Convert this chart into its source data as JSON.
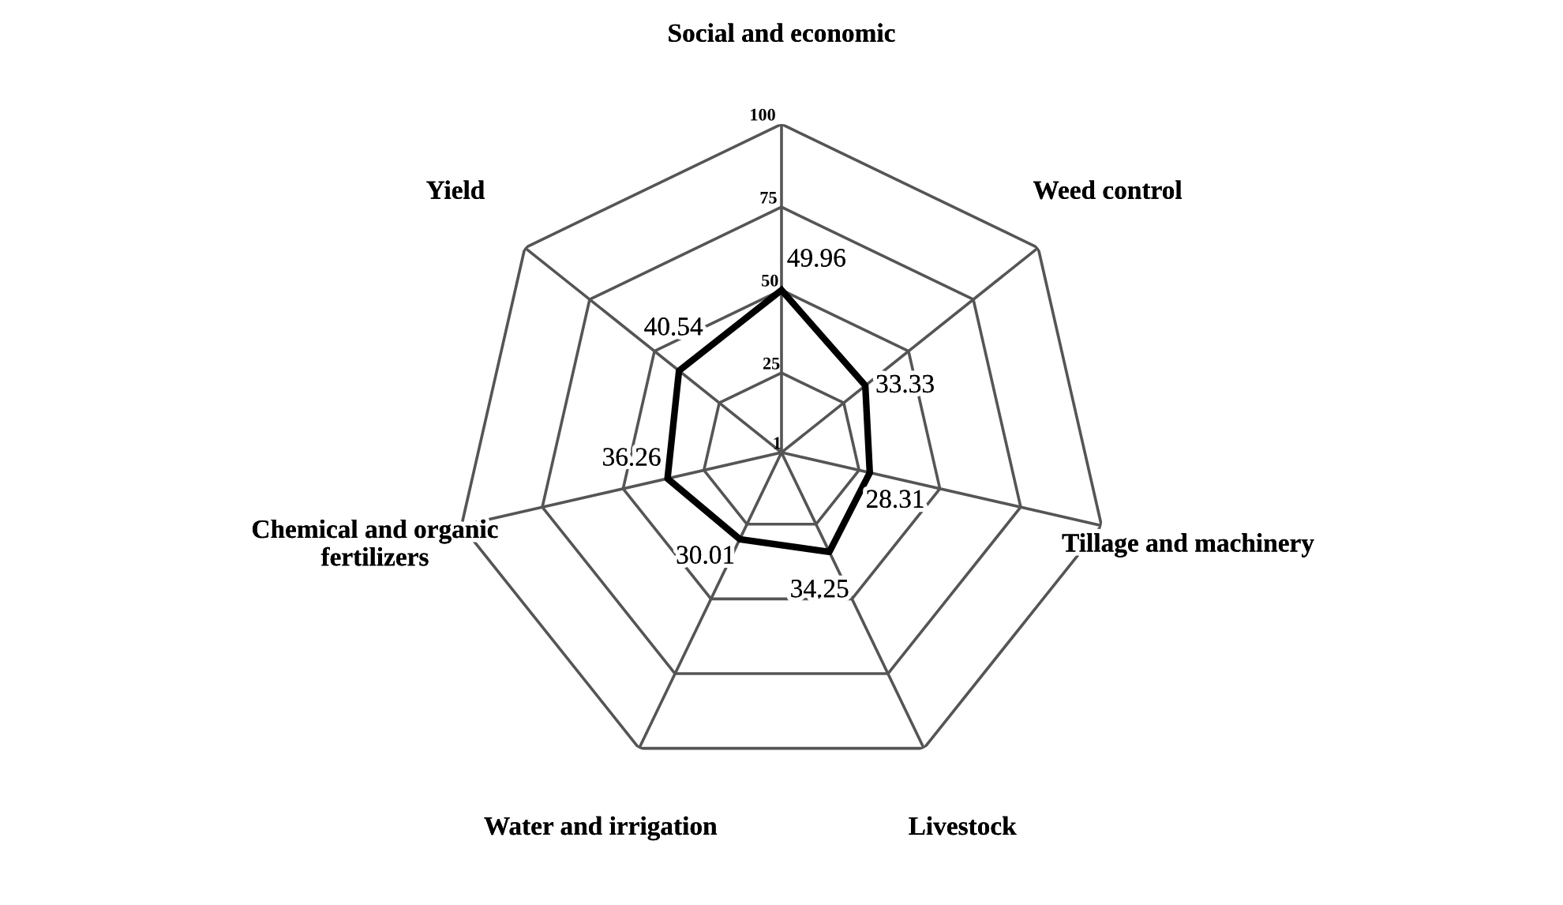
{
  "chart_data": {
    "type": "radar",
    "categories": [
      "Social and economic",
      "Weed control",
      "Tillage and machinery",
      "Livestock",
      "Water and irrigation",
      "Chemical and organic fertilizers",
      "Yield"
    ],
    "series": [
      {
        "color": "#000000",
        "values": [
          49.96,
          33.33,
          28.31,
          34.25,
          30.01,
          36.26,
          40.54
        ]
      }
    ],
    "ylim": [
      1,
      100
    ],
    "yticks": [
      1,
      25,
      50,
      75,
      100
    ],
    "grid": true,
    "data_labels": true,
    "line_style": "solid",
    "marker": "none"
  }
}
